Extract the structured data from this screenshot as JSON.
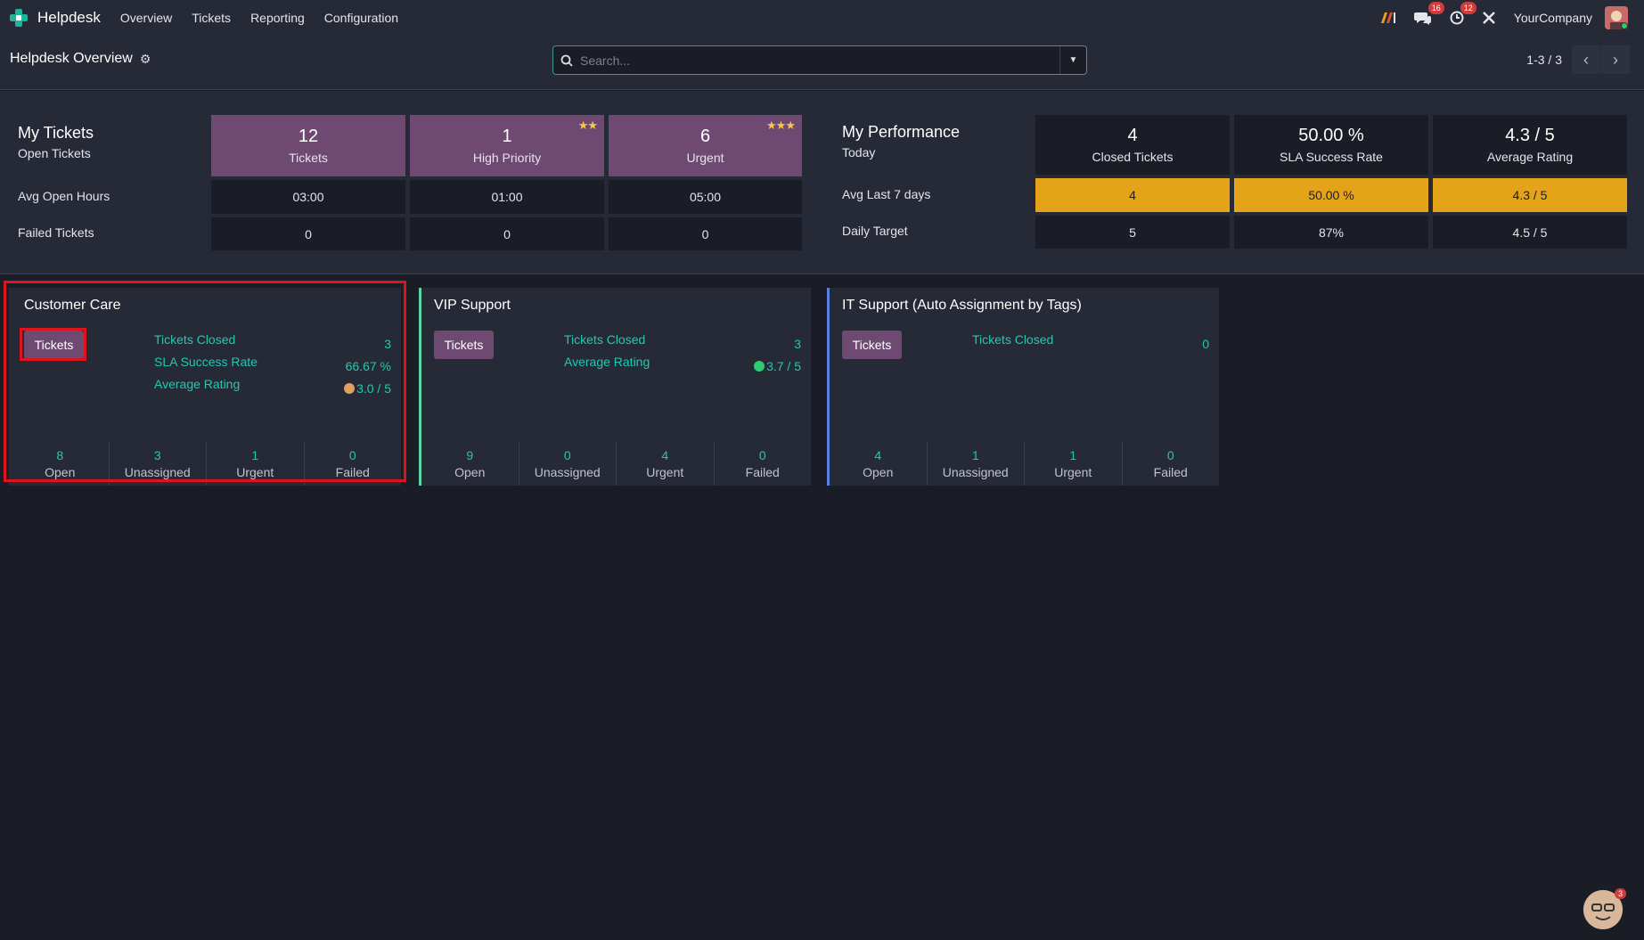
{
  "topbar": {
    "app_name": "Helpdesk",
    "menu": [
      "Overview",
      "Tickets",
      "Reporting",
      "Configuration"
    ],
    "messages_badge": "16",
    "activities_badge": "12",
    "company": "YourCompany"
  },
  "control_panel": {
    "title": "Helpdesk Overview",
    "search_placeholder": "Search...",
    "pager": "1-3 / 3"
  },
  "my_tickets": {
    "heading": "My Tickets",
    "row_labels": [
      "Open Tickets",
      "Avg Open Hours",
      "Failed Tickets"
    ],
    "columns": [
      {
        "count": "12",
        "label": "Tickets",
        "stars": "",
        "avg_hours": "03:00",
        "failed": "0"
      },
      {
        "count": "1",
        "label": "High Priority",
        "stars": "★★",
        "avg_hours": "01:00",
        "failed": "0"
      },
      {
        "count": "6",
        "label": "Urgent",
        "stars": "★★★",
        "avg_hours": "05:00",
        "failed": "0"
      }
    ]
  },
  "my_performance": {
    "heading": "My Performance",
    "row_labels": [
      "Today",
      "Avg Last 7 days",
      "Daily Target"
    ],
    "columns": [
      {
        "today": "4",
        "label": "Closed Tickets",
        "avg7": "4",
        "target": "5"
      },
      {
        "today": "50.00 %",
        "label": "SLA Success Rate",
        "avg7": "50.00 %",
        "target": "87%"
      },
      {
        "today": "4.3 / 5",
        "label": "Average Rating",
        "avg7": "4.3 / 5",
        "target": "4.5 / 5"
      }
    ]
  },
  "teams": [
    {
      "name": "Customer Care",
      "button": "Tickets",
      "border_color": "",
      "stats": [
        {
          "label": "Tickets Closed",
          "value": "3",
          "icon": ""
        },
        {
          "label": "SLA Success Rate",
          "value": "66.67 %",
          "icon": ""
        },
        {
          "label": "Average Rating",
          "value": "3.0 / 5",
          "icon": "neutral-face-icon"
        }
      ],
      "footer": [
        {
          "num": "8",
          "label": "Open"
        },
        {
          "num": "3",
          "label": "Unassigned"
        },
        {
          "num": "1",
          "label": "Urgent"
        },
        {
          "num": "0",
          "label": "Failed"
        }
      ]
    },
    {
      "name": "VIP Support",
      "button": "Tickets",
      "border_color": "#5bd6a3",
      "stats": [
        {
          "label": "Tickets Closed",
          "value": "3",
          "icon": ""
        },
        {
          "label": "Average Rating",
          "value": "3.7 / 5",
          "icon": "happy-face-icon"
        }
      ],
      "footer": [
        {
          "num": "9",
          "label": "Open"
        },
        {
          "num": "0",
          "label": "Unassigned"
        },
        {
          "num": "4",
          "label": "Urgent"
        },
        {
          "num": "0",
          "label": "Failed"
        }
      ]
    },
    {
      "name": "IT Support (Auto Assignment by Tags)",
      "button": "Tickets",
      "border_color": "#5b7fe0",
      "stats": [
        {
          "label": "Tickets Closed",
          "value": "0",
          "icon": ""
        }
      ],
      "footer": [
        {
          "num": "4",
          "label": "Open"
        },
        {
          "num": "1",
          "label": "Unassigned"
        },
        {
          "num": "1",
          "label": "Urgent"
        },
        {
          "num": "0",
          "label": "Failed"
        }
      ]
    }
  ],
  "chat_badge": "3",
  "colors": {
    "accent": "#6e4a73",
    "teal": "#22c9b1",
    "orange": "#e5a31a",
    "highlight": "#e0121b"
  }
}
